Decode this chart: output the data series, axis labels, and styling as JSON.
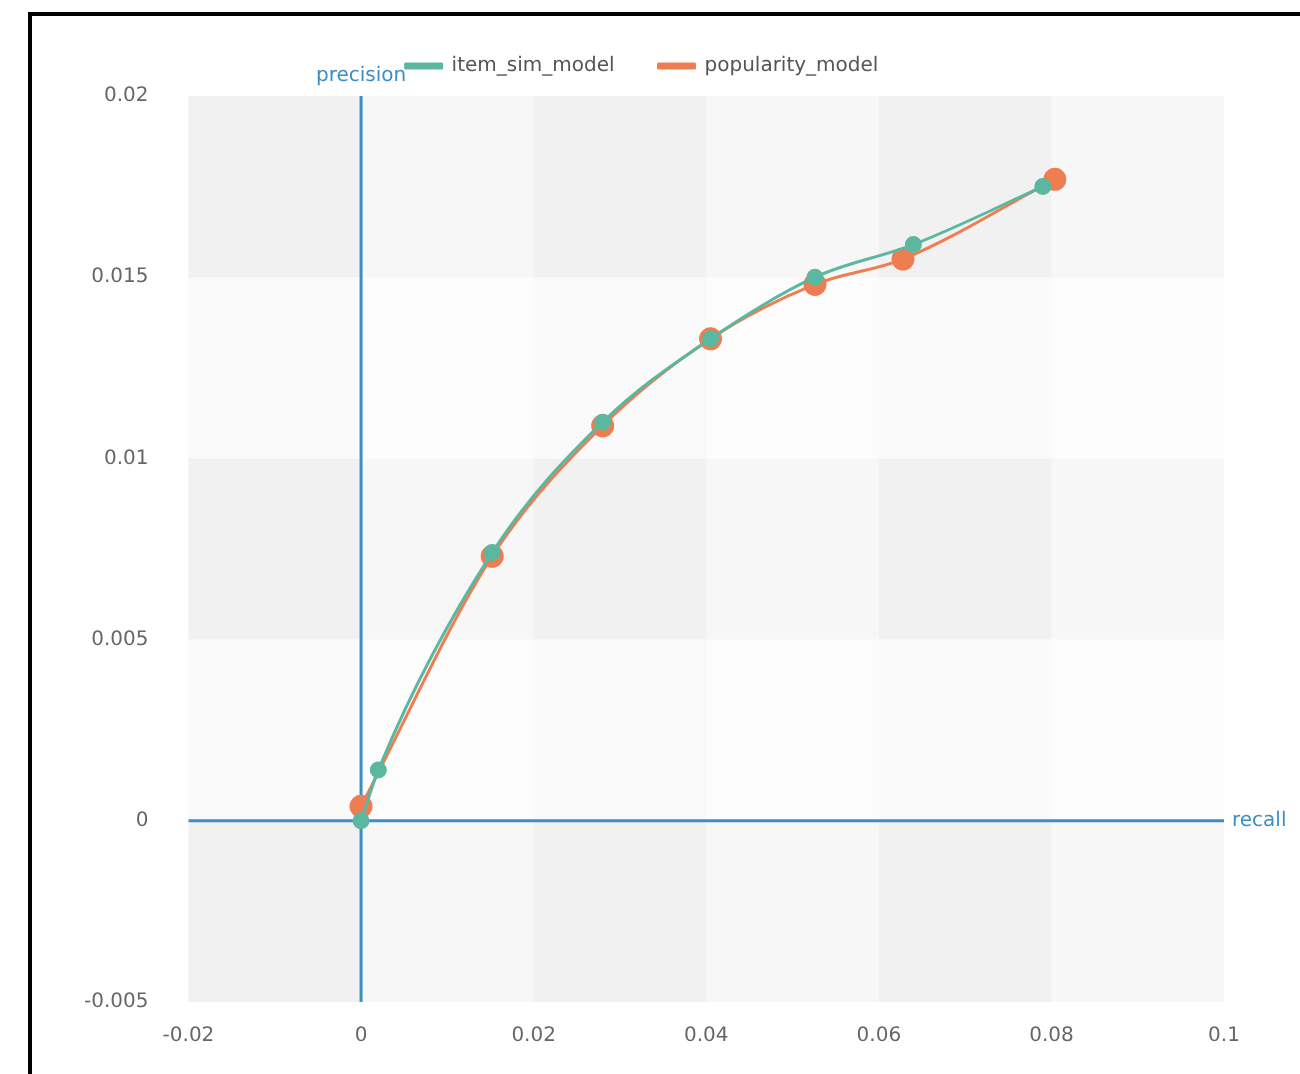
{
  "chart_data": {
    "type": "line",
    "xlabel": "recall",
    "ylabel": "precision",
    "xlim": [
      -0.02,
      0.1
    ],
    "xticks": [
      -0.02,
      0,
      0.02,
      0.04,
      0.06,
      0.08,
      0.1
    ],
    "ylim": [
      -0.005,
      0.02
    ],
    "yticks": [
      -0.005,
      0,
      0.005,
      0.01,
      0.015,
      0.02
    ],
    "grid": true,
    "legend": "top",
    "marker": "circle",
    "line_style": "solid",
    "series": [
      {
        "name": "item_sim_model",
        "color": "#5bb79f",
        "x": [
          0,
          0.002,
          0.0152,
          0.028,
          0.0405,
          0.0526,
          0.064,
          0.079
        ],
        "values": [
          0,
          0.0014,
          0.0074,
          0.011,
          0.0133,
          0.015,
          0.0159,
          0.0175
        ]
      },
      {
        "name": "popularity_model",
        "color": "#ee7d52",
        "x": [
          0,
          0.0152,
          0.028,
          0.0405,
          0.0526,
          0.0628,
          0.0804
        ],
        "values": [
          0.0004,
          0.0073,
          0.0109,
          0.0133,
          0.0148,
          0.0155,
          0.0177
        ]
      }
    ]
  }
}
